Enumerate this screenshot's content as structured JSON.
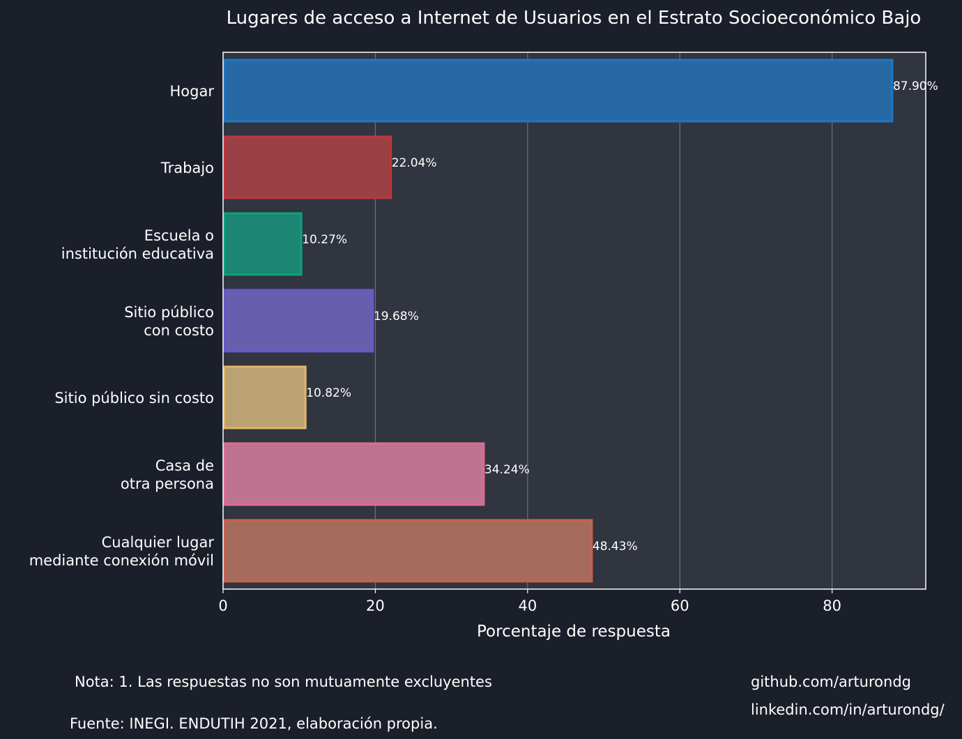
{
  "colors": {
    "figure_bg": "#1a1f29",
    "plot_bg": "#30353f",
    "text": "#ffffff",
    "grid": "#6b7080"
  },
  "chart_data": {
    "type": "bar",
    "orientation": "horizontal",
    "title": "Lugares de acceso a Internet de Usuarios en el Estrato Socioeconómico Bajo",
    "xlabel": "Porcentaje de respuesta",
    "ylabel": "",
    "xlim": [
      0,
      92.3
    ],
    "xticks": [
      0,
      20,
      40,
      60,
      80
    ],
    "grid": "vertical",
    "categories": [
      [
        "Hogar"
      ],
      [
        "Trabajo"
      ],
      [
        "Escuela o",
        "institución educativa"
      ],
      [
        "Sitio público",
        "con costo"
      ],
      [
        "Sitio público sin costo"
      ],
      [
        "Casa de",
        "otra persona"
      ],
      [
        "Cualquier lugar",
        "mediante conexión móvil"
      ]
    ],
    "values": [
      87.9,
      22.04,
      10.27,
      19.68,
      10.82,
      34.24,
      48.43
    ],
    "value_labels": [
      "87.90%",
      "22.04%",
      "10.27%",
      "19.68%",
      "10.82%",
      "34.24%",
      "48.43%"
    ],
    "bar_colors": [
      {
        "fill": "#2669a5",
        "stroke": "#1f77c8"
      },
      {
        "fill": "#9b4045",
        "stroke": "#c0353c"
      },
      {
        "fill": "#1d8574",
        "stroke": "#0aa37e"
      },
      {
        "fill": "#675fae",
        "stroke": "#6a58cc"
      },
      {
        "fill": "#bba272",
        "stroke": "#e2b56a"
      },
      {
        "fill": "#be7490",
        "stroke": "#de6b96"
      },
      {
        "fill": "#a56b5d",
        "stroke": "#c9604b"
      }
    ]
  },
  "notes": {
    "note": "Nota: 1. Las respuestas no son mutuamente excluyentes",
    "source": "Fuente: INEGI. ENDUTIH 2021, elaboración propia.",
    "github": "github.com/arturondg",
    "linkedin": "linkedin.com/in/arturondg/"
  }
}
